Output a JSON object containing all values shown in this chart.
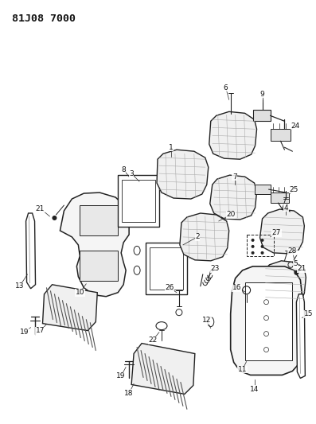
{
  "title_code": "81J08 7000",
  "bg_color": "#ffffff",
  "fig_width": 3.97,
  "fig_height": 5.33,
  "dpi": 100,
  "line_color": "#222222"
}
